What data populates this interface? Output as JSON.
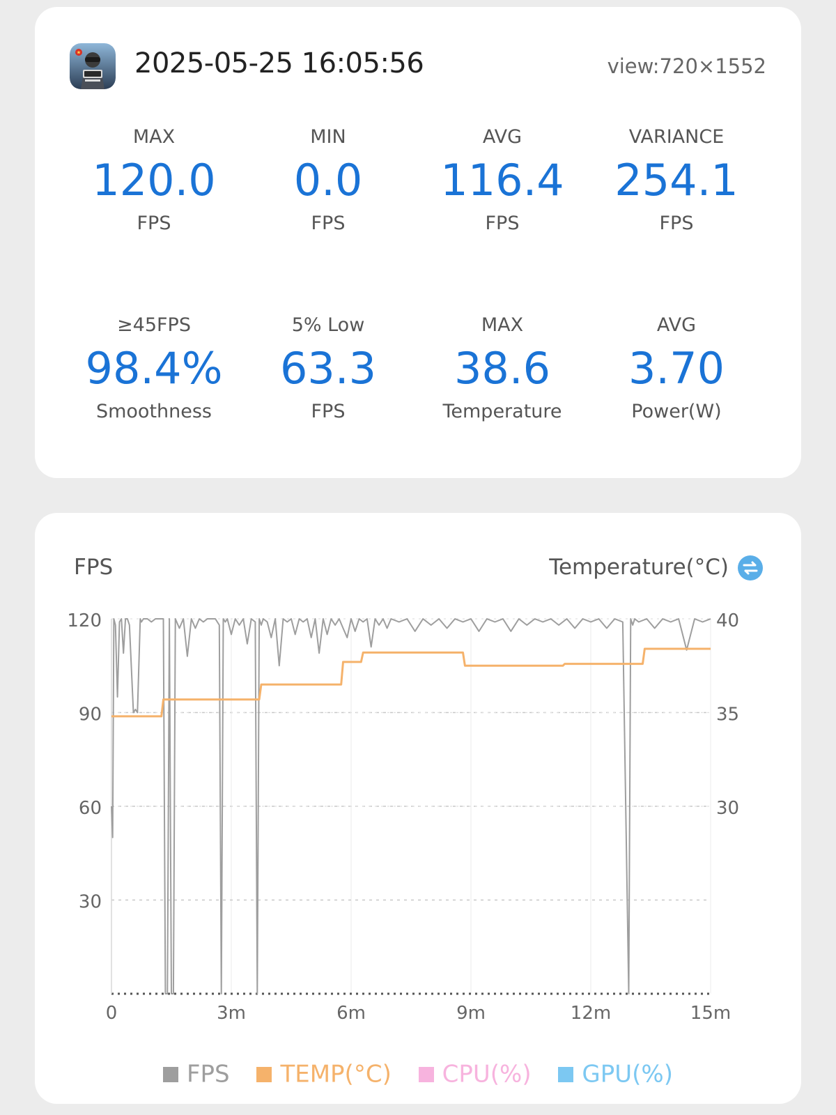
{
  "summary": {
    "timestamp": "2025-05-25 16:05:56",
    "view": "view:720×1552",
    "stats": [
      {
        "label": "MAX",
        "value": "120.0",
        "unit": "FPS"
      },
      {
        "label": "MIN",
        "value": "0.0",
        "unit": "FPS"
      },
      {
        "label": "AVG",
        "value": "116.4",
        "unit": "FPS"
      },
      {
        "label": "VARIANCE",
        "value": "254.1",
        "unit": "FPS"
      },
      {
        "label": "≥45FPS",
        "value": "98.4%",
        "unit": "Smoothness"
      },
      {
        "label": "5% Low",
        "value": "63.3",
        "unit": "FPS"
      },
      {
        "label": "MAX",
        "value": "38.6",
        "unit": "Temperature"
      },
      {
        "label": "AVG",
        "value": "3.70",
        "unit": "Power(W)"
      }
    ],
    "app_icon": "pubg-mobile-app-icon"
  },
  "chart": {
    "left_title": "FPS",
    "right_title": "Temperature(°C)",
    "swap_icon": "swap-arrows-icon",
    "colors": {
      "fps": "#9e9e9e",
      "temp": "#f5b26b",
      "cpu": "#f7b3de",
      "gpu": "#7cc8f2",
      "accent": "#5aaee8"
    },
    "legend": [
      {
        "name": "FPS",
        "color": "#9e9e9e"
      },
      {
        "name": "TEMP(°C)",
        "color": "#f5b26b"
      },
      {
        "name": "CPU(%)",
        "color": "#f7b3de"
      },
      {
        "name": "GPU(%)",
        "color": "#7cc8f2"
      }
    ]
  },
  "chart_data": {
    "type": "line",
    "x_unit": "minutes",
    "xlim": [
      0,
      15
    ],
    "x_ticks": [
      0,
      3,
      6,
      9,
      12,
      15
    ],
    "x_tick_labels": [
      "0",
      "3m",
      "6m",
      "9m",
      "12m",
      "15m"
    ],
    "ylim": [
      0,
      120
    ],
    "y_ticks": [
      30,
      60,
      90,
      120
    ],
    "y_tick_labels": [
      "30",
      "60",
      "90",
      "120"
    ],
    "y2lim": [
      20,
      40
    ],
    "y2_ticks": [
      30,
      35,
      40
    ],
    "y2_tick_labels": [
      "30",
      "35",
      "40"
    ],
    "grid": true,
    "legend_position": "bottom",
    "series": [
      {
        "name": "FPS",
        "axis": "left",
        "x": [
          0,
          0.03,
          0.06,
          0.1,
          0.15,
          0.2,
          0.25,
          0.3,
          0.35,
          0.4,
          0.45,
          0.55,
          0.6,
          0.65,
          0.72,
          0.75,
          0.8,
          0.85,
          0.9,
          1.0,
          1.1,
          1.2,
          1.3,
          1.35,
          1.4,
          1.45,
          1.5,
          1.55,
          1.6,
          1.7,
          1.8,
          1.9,
          2.0,
          2.1,
          2.2,
          2.3,
          2.4,
          2.5,
          2.6,
          2.7,
          2.75,
          2.8,
          2.85,
          2.9,
          3.0,
          3.1,
          3.2,
          3.3,
          3.4,
          3.5,
          3.6,
          3.65,
          3.7,
          3.75,
          3.8,
          3.9,
          4.0,
          4.1,
          4.2,
          4.3,
          4.4,
          4.5,
          4.6,
          4.7,
          4.8,
          4.9,
          5.0,
          5.1,
          5.2,
          5.3,
          5.4,
          5.5,
          5.6,
          5.7,
          5.8,
          5.9,
          6.0,
          6.1,
          6.2,
          6.3,
          6.4,
          6.5,
          6.6,
          6.7,
          6.8,
          6.9,
          7.0,
          7.2,
          7.4,
          7.6,
          7.8,
          8.0,
          8.2,
          8.4,
          8.6,
          8.8,
          9.0,
          9.2,
          9.4,
          9.6,
          9.8,
          10.0,
          10.2,
          10.4,
          10.6,
          10.8,
          11.0,
          11.2,
          11.4,
          11.6,
          11.8,
          12.0,
          12.2,
          12.4,
          12.6,
          12.8,
          12.95,
          13.0,
          13.05,
          13.1,
          13.2,
          13.4,
          13.6,
          13.8,
          14.0,
          14.2,
          14.4,
          14.6,
          14.8,
          15.0
        ],
        "y": [
          60,
          50,
          120,
          118,
          95,
          119,
          120,
          109,
          120,
          120,
          118,
          90,
          91,
          90,
          120,
          119,
          120,
          120,
          120,
          119,
          120,
          120,
          120,
          0,
          0,
          120,
          0,
          0,
          120,
          117,
          120,
          108,
          120,
          117,
          120,
          119,
          120,
          120,
          120,
          118,
          0,
          120,
          119,
          120,
          115,
          120,
          118,
          120,
          112,
          120,
          119,
          0,
          120,
          118,
          120,
          119,
          114,
          120,
          105,
          120,
          119,
          120,
          115,
          120,
          119,
          120,
          114,
          120,
          109,
          120,
          115,
          120,
          118,
          120,
          117,
          114,
          120,
          116,
          120,
          119,
          120,
          111,
          120,
          118,
          120,
          117,
          120,
          119,
          120,
          116,
          120,
          118,
          120,
          117,
          120,
          119,
          120,
          116,
          120,
          119,
          120,
          116,
          120,
          118,
          120,
          119,
          120,
          118,
          120,
          117,
          120,
          119,
          120,
          117,
          120,
          119,
          0,
          120,
          118,
          120,
          119,
          120,
          117,
          120,
          119,
          120,
          110,
          120,
          119,
          120
        ]
      },
      {
        "name": "TEMP(°C)",
        "axis": "right",
        "x": [
          0,
          1.25,
          1.3,
          3.7,
          3.75,
          5.75,
          5.8,
          6.25,
          6.3,
          8.8,
          8.85,
          11.3,
          11.35,
          13.3,
          13.35,
          15.0
        ],
        "y": [
          34.8,
          34.8,
          35.7,
          35.7,
          36.5,
          36.5,
          37.7,
          37.7,
          38.2,
          38.2,
          37.5,
          37.5,
          37.6,
          37.6,
          38.4,
          38.4
        ]
      }
    ]
  }
}
